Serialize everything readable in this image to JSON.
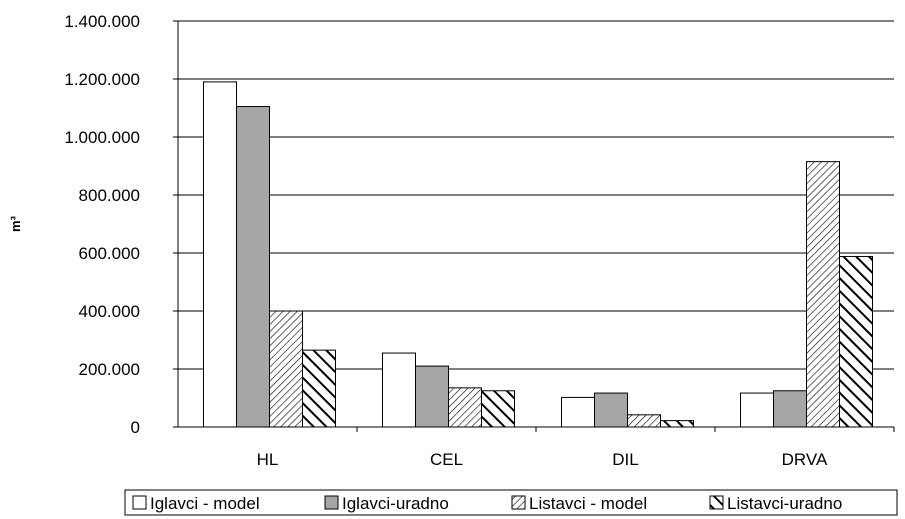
{
  "chart_data": {
    "type": "bar",
    "categories": [
      "HL",
      "CEL",
      "DIL",
      "DRVA"
    ],
    "series": [
      {
        "name": "Iglavci - model",
        "values": [
          1190000,
          255000,
          102000,
          117000
        ],
        "pattern": "white"
      },
      {
        "name": "Iglavci-uradno",
        "values": [
          1105000,
          210000,
          117000,
          125000
        ],
        "pattern": "gray"
      },
      {
        "name": "Listavci - model",
        "values": [
          400000,
          135000,
          42000,
          915000
        ],
        "pattern": "fine-diagonal"
      },
      {
        "name": "Listavci-uradno",
        "values": [
          265000,
          125000,
          22000,
          588000
        ],
        "pattern": "bold-diagonal"
      }
    ],
    "yticks": [
      "0",
      "200.000",
      "400.000",
      "600.000",
      "800.000",
      "1.000.000",
      "1.200.000",
      "1.400.000"
    ],
    "ylabel": "m³",
    "ylim": [
      0,
      1400000
    ],
    "grid": true,
    "legend": "bottom",
    "colors": {
      "gray": "#a6a6a6",
      "grid": "#000000",
      "bar_stroke": "#000000"
    }
  }
}
